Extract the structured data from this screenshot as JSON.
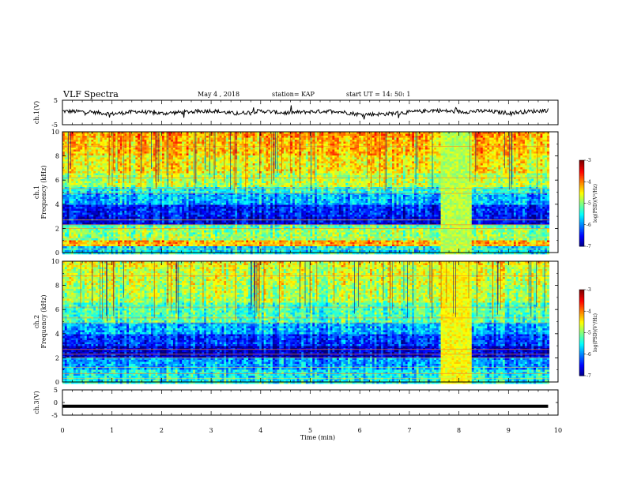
{
  "header": {
    "title": "VLF Spectra",
    "date": "May 4 , 2018",
    "station": "station= KAP",
    "start": "start  UT =   14: 50: 1"
  },
  "chart_data": [
    {
      "type": "line",
      "panel": "ch1-waveform",
      "ylabel": "ch.1(V)",
      "ylim": [
        -5,
        5
      ],
      "yticks": [
        "5",
        "-5"
      ],
      "x": [
        0,
        0.5,
        1,
        1.5,
        2,
        2.5,
        3,
        3.5,
        4,
        4.5,
        5,
        5.5,
        6,
        6.5,
        7,
        7.5,
        8,
        8.5,
        9,
        9.5,
        9.8
      ],
      "values": [
        0.5,
        0.3,
        -0.6,
        0.4,
        -0.4,
        0.2,
        0.7,
        -0.5,
        0.6,
        -0.2,
        0.3,
        0.6,
        -0.8,
        -0.6,
        0.1,
        0.9,
        0.2,
        0.6,
        -0.2,
        0.5,
        0.9
      ]
    },
    {
      "type": "heatmap",
      "panel": "ch1-spectrogram",
      "ylabel": "ch.1\nFrequency (kHz)",
      "ylim": [
        0,
        10
      ],
      "yticks": [
        "0",
        "2",
        "4",
        "6",
        "8",
        "10"
      ],
      "colorbar": {
        "label": "log(PSD)(V²/Hz)",
        "range": [
          -7,
          -3
        ],
        "ticks": [
          "-3",
          "-4",
          "-5",
          "-6",
          "-7"
        ]
      },
      "bands_khz": [
        {
          "from": 9.5,
          "to": 10,
          "level": 0.72
        },
        {
          "from": 8,
          "to": 9.5,
          "level": 0.68
        },
        {
          "from": 6.5,
          "to": 8,
          "level": 0.62
        },
        {
          "from": 5.5,
          "to": 6.5,
          "level": 0.55
        },
        {
          "from": 5,
          "to": 5.5,
          "level": 0.4
        },
        {
          "from": 4,
          "to": 5,
          "level": 0.3
        },
        {
          "from": 3,
          "to": 4,
          "level": 0.15
        },
        {
          "from": 2.4,
          "to": 3,
          "level": 0.1
        },
        {
          "from": 2,
          "to": 2.4,
          "level": 0.45
        },
        {
          "from": 1,
          "to": 2,
          "level": 0.52
        },
        {
          "from": 0.5,
          "to": 1,
          "level": 0.7
        },
        {
          "from": 0,
          "to": 0.5,
          "level": 0.35
        }
      ],
      "event": {
        "t_start": 7.65,
        "t_end": 8.25,
        "level": 0.55
      }
    },
    {
      "type": "heatmap",
      "panel": "ch2-spectrogram",
      "ylabel": "ch.2\nFrequency (kHz)",
      "ylim": [
        0,
        10
      ],
      "yticks": [
        "0",
        "2",
        "4",
        "6",
        "8",
        "10"
      ],
      "colorbar": {
        "label": "log(PSD)(V²/Hz)",
        "range": [
          -7,
          -3
        ],
        "ticks": [
          "-3",
          "-4",
          "-5",
          "-6",
          "-7"
        ]
      },
      "bands_khz": [
        {
          "from": 9.5,
          "to": 10,
          "level": 0.62
        },
        {
          "from": 8,
          "to": 9.5,
          "level": 0.58
        },
        {
          "from": 6.5,
          "to": 8,
          "level": 0.55
        },
        {
          "from": 5,
          "to": 6.5,
          "level": 0.45
        },
        {
          "from": 4,
          "to": 5,
          "level": 0.3
        },
        {
          "from": 3,
          "to": 4,
          "level": 0.18
        },
        {
          "from": 2,
          "to": 3,
          "level": 0.08
        },
        {
          "from": 1,
          "to": 2,
          "level": 0.28
        },
        {
          "from": 0,
          "to": 1,
          "level": 0.38
        }
      ],
      "event": {
        "t_start": 7.65,
        "t_end": 8.25,
        "level": 0.62
      }
    },
    {
      "type": "line",
      "panel": "ch3-waveform",
      "ylabel": "ch.3(V)",
      "ylim": [
        -5,
        5
      ],
      "yticks": [
        "5",
        "0",
        "-5"
      ],
      "x": [
        0,
        9.8
      ],
      "values": [
        -1.5,
        -1.5
      ]
    }
  ],
  "xaxis": {
    "label": "Time  (min)",
    "range": [
      0,
      10
    ],
    "ticks": [
      "0",
      "1",
      "2",
      "3",
      "4",
      "5",
      "6",
      "7",
      "8",
      "9",
      "10"
    ]
  }
}
